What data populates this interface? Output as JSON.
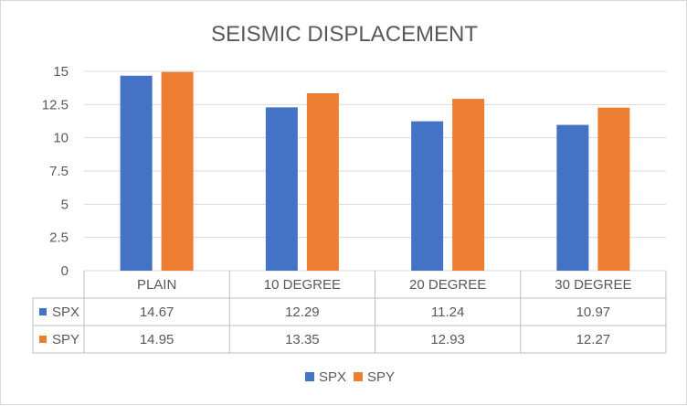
{
  "chart_data": {
    "type": "bar",
    "title": "SEISMIC DISPLACEMENT",
    "categories": [
      "PLAIN",
      "10 DEGREE",
      "20 DEGREE",
      "30 DEGREE"
    ],
    "series": [
      {
        "name": "SPX",
        "values": [
          14.67,
          12.29,
          11.24,
          10.97
        ],
        "color": "#4472C4"
      },
      {
        "name": "SPY",
        "values": [
          14.95,
          13.35,
          12.93,
          12.27
        ],
        "color": "#ED7D31"
      }
    ],
    "data_table_values": [
      [
        "14.67",
        "12.29",
        "11.24",
        "10.97"
      ],
      [
        "14.95",
        "13.35",
        "12.93",
        "12.27"
      ]
    ],
    "ylim": [
      0,
      15
    ],
    "yticks": [
      "0",
      "2.5",
      "5",
      "7.5",
      "10",
      "12.5",
      "15"
    ],
    "grid": true,
    "legend_position": "bottom",
    "data_table": true
  }
}
